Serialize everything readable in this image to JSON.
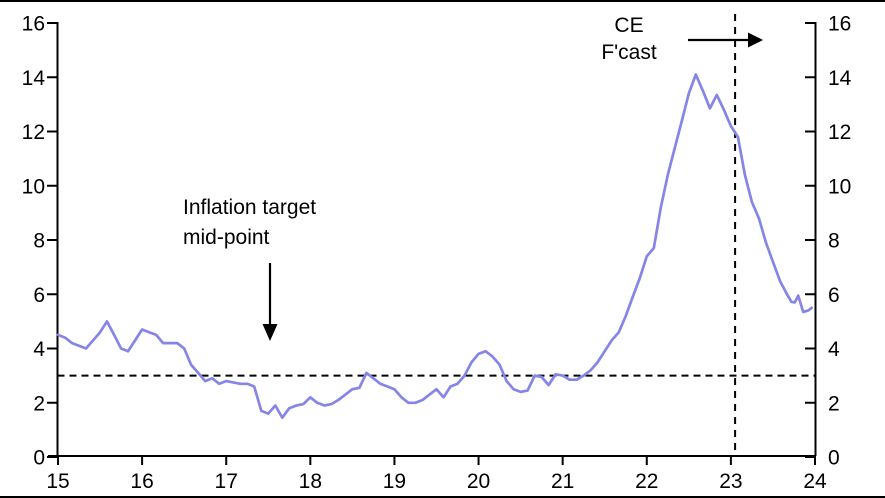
{
  "chart_data": {
    "type": "line",
    "title": "",
    "xlabel": "",
    "ylabel": "",
    "grid": false,
    "legend": false,
    "x_axis": {
      "range": [
        15,
        24
      ],
      "ticks": [
        15,
        16,
        17,
        18,
        19,
        20,
        21,
        22,
        23,
        24
      ]
    },
    "y_axis_left": {
      "range": [
        0,
        16
      ],
      "ticks": [
        16,
        14,
        12,
        10,
        8,
        6,
        4,
        2,
        0
      ]
    },
    "y_axis_right": {
      "range": [
        0,
        16
      ],
      "ticks": [
        16,
        14,
        12,
        10,
        8,
        6,
        4,
        2,
        0
      ]
    },
    "series": [
      {
        "name": "inflation-rate",
        "color": "#8585e8",
        "points": [
          [
            15.0,
            4.5
          ],
          [
            15.083,
            4.4
          ],
          [
            15.167,
            4.2
          ],
          [
            15.25,
            4.1
          ],
          [
            15.333,
            4.0
          ],
          [
            15.417,
            4.3
          ],
          [
            15.5,
            4.6
          ],
          [
            15.583,
            5.0
          ],
          [
            15.667,
            4.5
          ],
          [
            15.75,
            4.0
          ],
          [
            15.833,
            3.9
          ],
          [
            15.917,
            4.3
          ],
          [
            16.0,
            4.7
          ],
          [
            16.083,
            4.6
          ],
          [
            16.167,
            4.5
          ],
          [
            16.25,
            4.2
          ],
          [
            16.333,
            4.2
          ],
          [
            16.417,
            4.2
          ],
          [
            16.5,
            4.0
          ],
          [
            16.583,
            3.4
          ],
          [
            16.667,
            3.1
          ],
          [
            16.75,
            2.8
          ],
          [
            16.833,
            2.9
          ],
          [
            16.917,
            2.7
          ],
          [
            17.0,
            2.8
          ],
          [
            17.083,
            2.75
          ],
          [
            17.167,
            2.7
          ],
          [
            17.25,
            2.7
          ],
          [
            17.333,
            2.6
          ],
          [
            17.417,
            1.7
          ],
          [
            17.5,
            1.6
          ],
          [
            17.583,
            1.9
          ],
          [
            17.667,
            1.45
          ],
          [
            17.75,
            1.8
          ],
          [
            17.833,
            1.9
          ],
          [
            17.917,
            1.95
          ],
          [
            18.0,
            2.2
          ],
          [
            18.083,
            2.0
          ],
          [
            18.167,
            1.9
          ],
          [
            18.25,
            1.95
          ],
          [
            18.333,
            2.1
          ],
          [
            18.417,
            2.3
          ],
          [
            18.5,
            2.5
          ],
          [
            18.583,
            2.55
          ],
          [
            18.667,
            3.1
          ],
          [
            18.75,
            2.9
          ],
          [
            18.833,
            2.7
          ],
          [
            18.917,
            2.6
          ],
          [
            19.0,
            2.5
          ],
          [
            19.083,
            2.2
          ],
          [
            19.167,
            2.0
          ],
          [
            19.25,
            2.0
          ],
          [
            19.333,
            2.1
          ],
          [
            19.417,
            2.3
          ],
          [
            19.5,
            2.5
          ],
          [
            19.583,
            2.2
          ],
          [
            19.667,
            2.6
          ],
          [
            19.75,
            2.7
          ],
          [
            19.833,
            3.0
          ],
          [
            19.917,
            3.5
          ],
          [
            20.0,
            3.8
          ],
          [
            20.083,
            3.9
          ],
          [
            20.167,
            3.7
          ],
          [
            20.25,
            3.4
          ],
          [
            20.333,
            2.8
          ],
          [
            20.417,
            2.5
          ],
          [
            20.5,
            2.4
          ],
          [
            20.583,
            2.45
          ],
          [
            20.667,
            3.0
          ],
          [
            20.75,
            2.95
          ],
          [
            20.833,
            2.65
          ],
          [
            20.917,
            3.05
          ],
          [
            21.0,
            3.0
          ],
          [
            21.083,
            2.85
          ],
          [
            21.167,
            2.85
          ],
          [
            21.25,
            3.0
          ],
          [
            21.333,
            3.2
          ],
          [
            21.417,
            3.5
          ],
          [
            21.5,
            3.9
          ],
          [
            21.583,
            4.3
          ],
          [
            21.667,
            4.6
          ],
          [
            21.75,
            5.2
          ],
          [
            21.833,
            5.9
          ],
          [
            21.917,
            6.6
          ],
          [
            22.0,
            7.4
          ],
          [
            22.083,
            7.7
          ],
          [
            22.167,
            9.2
          ],
          [
            22.25,
            10.4
          ],
          [
            22.333,
            11.4
          ],
          [
            22.417,
            12.4
          ],
          [
            22.5,
            13.4
          ],
          [
            22.583,
            14.1
          ],
          [
            22.667,
            13.5
          ],
          [
            22.75,
            12.85
          ],
          [
            22.833,
            13.35
          ],
          [
            22.917,
            12.8
          ],
          [
            23.0,
            12.2
          ],
          [
            23.083,
            11.8
          ],
          [
            23.167,
            10.4
          ],
          [
            23.25,
            9.4
          ],
          [
            23.333,
            8.8
          ],
          [
            23.417,
            7.9
          ],
          [
            23.5,
            7.2
          ],
          [
            23.583,
            6.5
          ],
          [
            23.667,
            6.0
          ],
          [
            23.72,
            5.72
          ],
          [
            23.76,
            5.7
          ],
          [
            23.8,
            5.95
          ],
          [
            23.86,
            5.35
          ],
          [
            23.92,
            5.4
          ],
          [
            23.96,
            5.5
          ]
        ]
      }
    ],
    "reference_lines": [
      {
        "name": "inflation-target-midpoint",
        "orientation": "horizontal",
        "value": 3,
        "style": "dashed",
        "color": "#000000"
      },
      {
        "name": "forecast-start",
        "orientation": "vertical",
        "value": 23.05,
        "style": "dashed",
        "color": "#000000"
      }
    ],
    "annotations": [
      {
        "name": "inflation-target-label",
        "line1": "Inflation target",
        "line2": "mid-point",
        "arrow": "down"
      },
      {
        "name": "ce-forecast-label",
        "line1": "CE",
        "line2": "F'cast",
        "arrow": "right"
      }
    ]
  }
}
